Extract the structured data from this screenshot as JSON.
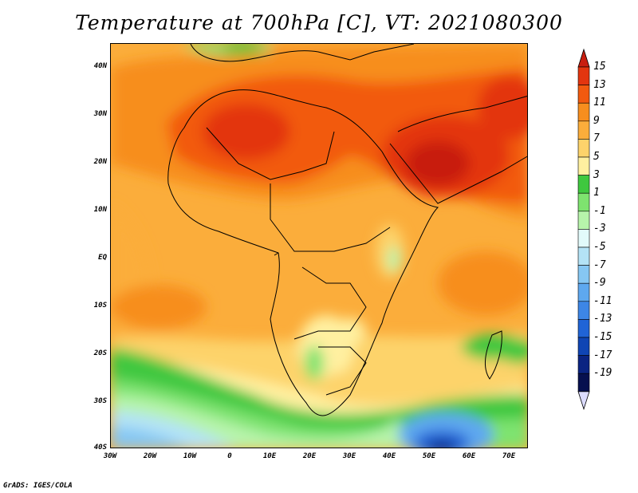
{
  "title": "Temperature at 700hPa [C], VT: 2021080300",
  "credit": "GrADS: IGES/COLA",
  "latitude_labels": [
    "40N",
    "30N",
    "20N",
    "10N",
    "EQ",
    "10S",
    "20S",
    "30S",
    "40S"
  ],
  "longitude_labels": [
    "30W",
    "20W",
    "10W",
    "0",
    "10E",
    "20E",
    "30E",
    "40E",
    "50E",
    "60E",
    "70E"
  ],
  "colorbar": {
    "labels": [
      "15",
      "13",
      "11",
      "9",
      "7",
      "5",
      "3",
      "1",
      "-1",
      "-3",
      "-5",
      "-7",
      "-9",
      "-11",
      "-13",
      "-15",
      "-17",
      "-19"
    ],
    "colors": [
      "#c81e10",
      "#e3350f",
      "#f25a0f",
      "#f78e1e",
      "#fbad3b",
      "#fdd36b",
      "#fff0a0",
      "#3fc83f",
      "#7ee36f",
      "#b7f4ab",
      "#e2fafa",
      "#b4e3f6",
      "#86c7f3",
      "#5ea8ef",
      "#3d86e6",
      "#2064d6",
      "#0f45b4",
      "#0a2482",
      "#06104f",
      "#dcdcff"
    ]
  }
}
